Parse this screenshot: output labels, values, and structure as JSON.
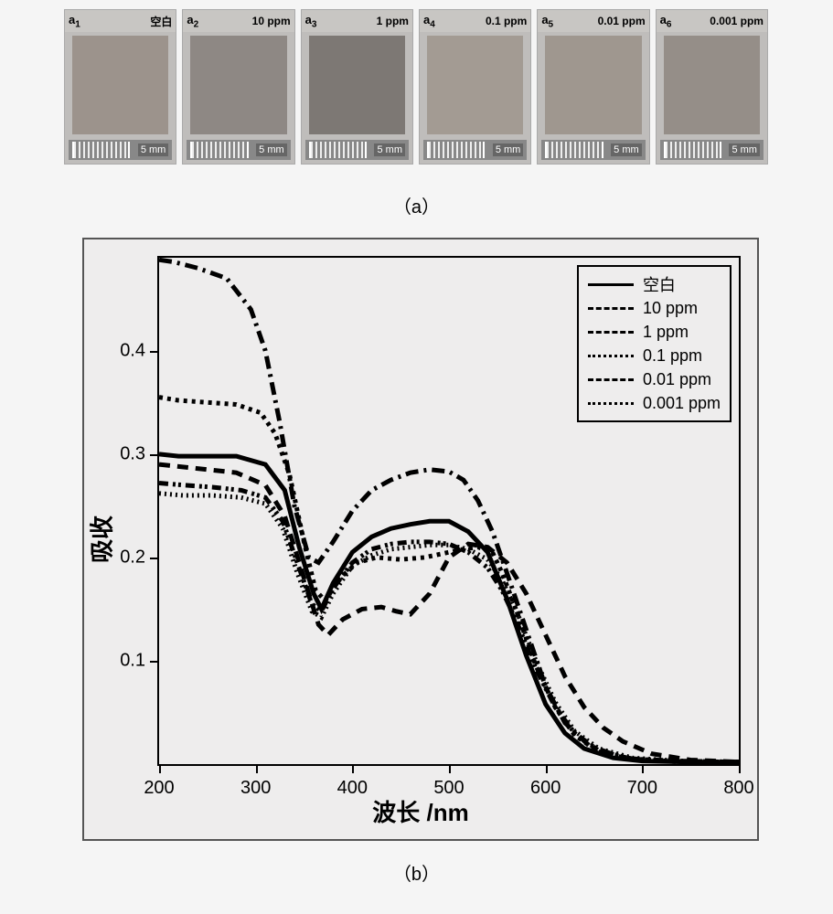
{
  "panel_a": {
    "caption": "（a）",
    "ruler_label": "5 mm",
    "samples": [
      {
        "id_prefix": "a",
        "id_sub": "1",
        "label": "空白",
        "fill": "#9c938c"
      },
      {
        "id_prefix": "a",
        "id_sub": "2",
        "label": "10 ppm",
        "fill": "#8e8884"
      },
      {
        "id_prefix": "a",
        "id_sub": "3",
        "label": "1 ppm",
        "fill": "#7d7874"
      },
      {
        "id_prefix": "a",
        "id_sub": "4",
        "label": "0.1 ppm",
        "fill": "#a39b93"
      },
      {
        "id_prefix": "a",
        "id_sub": "5",
        "label": "0.01 ppm",
        "fill": "#9f978f"
      },
      {
        "id_prefix": "a",
        "id_sub": "6",
        "label": "0.001 ppm",
        "fill": "#958e88"
      }
    ]
  },
  "panel_b": {
    "caption": "（b）",
    "x_axis": {
      "title": "波长 /nm",
      "min": 200,
      "max": 800,
      "ticks": [
        200,
        300,
        400,
        500,
        600,
        700,
        800
      ],
      "fontsize": 20
    },
    "y_axis": {
      "title": "吸收",
      "min": 0.0,
      "max": 0.49,
      "ticks": [
        0.1,
        0.2,
        0.3,
        0.4
      ],
      "fontsize": 20
    },
    "background_color": "#eeeded",
    "line_color": "#000000",
    "line_width": 2.5,
    "series": [
      {
        "name": "空白",
        "dash": "none",
        "points": [
          [
            200,
            0.3
          ],
          [
            220,
            0.298
          ],
          [
            250,
            0.298
          ],
          [
            280,
            0.298
          ],
          [
            310,
            0.29
          ],
          [
            330,
            0.265
          ],
          [
            345,
            0.21
          ],
          [
            360,
            0.165
          ],
          [
            368,
            0.15
          ],
          [
            380,
            0.175
          ],
          [
            400,
            0.205
          ],
          [
            420,
            0.22
          ],
          [
            440,
            0.228
          ],
          [
            460,
            0.232
          ],
          [
            480,
            0.235
          ],
          [
            500,
            0.235
          ],
          [
            520,
            0.225
          ],
          [
            540,
            0.205
          ],
          [
            560,
            0.16
          ],
          [
            580,
            0.105
          ],
          [
            600,
            0.058
          ],
          [
            620,
            0.03
          ],
          [
            640,
            0.015
          ],
          [
            670,
            0.006
          ],
          [
            700,
            0.003
          ],
          [
            750,
            0.002
          ],
          [
            800,
            0.002
          ]
        ]
      },
      {
        "name": "10 ppm",
        "dash": "12,8",
        "points": [
          [
            200,
            0.29
          ],
          [
            220,
            0.288
          ],
          [
            250,
            0.285
          ],
          [
            280,
            0.282
          ],
          [
            310,
            0.27
          ],
          [
            330,
            0.24
          ],
          [
            350,
            0.18
          ],
          [
            365,
            0.135
          ],
          [
            375,
            0.125
          ],
          [
            390,
            0.14
          ],
          [
            410,
            0.15
          ],
          [
            430,
            0.152
          ],
          [
            445,
            0.148
          ],
          [
            460,
            0.145
          ],
          [
            480,
            0.165
          ],
          [
            500,
            0.2
          ],
          [
            520,
            0.213
          ],
          [
            540,
            0.21
          ],
          [
            560,
            0.195
          ],
          [
            580,
            0.165
          ],
          [
            600,
            0.125
          ],
          [
            620,
            0.085
          ],
          [
            640,
            0.055
          ],
          [
            660,
            0.035
          ],
          [
            680,
            0.022
          ],
          [
            710,
            0.01
          ],
          [
            750,
            0.004
          ],
          [
            800,
            0.002
          ]
        ]
      },
      {
        "name": "1 ppm",
        "dash": "14,6,3,6",
        "points": [
          [
            200,
            0.488
          ],
          [
            215,
            0.486
          ],
          [
            240,
            0.48
          ],
          [
            270,
            0.47
          ],
          [
            295,
            0.44
          ],
          [
            310,
            0.4
          ],
          [
            325,
            0.33
          ],
          [
            340,
            0.25
          ],
          [
            355,
            0.2
          ],
          [
            365,
            0.195
          ],
          [
            380,
            0.215
          ],
          [
            400,
            0.245
          ],
          [
            420,
            0.265
          ],
          [
            440,
            0.275
          ],
          [
            460,
            0.282
          ],
          [
            480,
            0.285
          ],
          [
            500,
            0.283
          ],
          [
            515,
            0.275
          ],
          [
            530,
            0.255
          ],
          [
            545,
            0.225
          ],
          [
            560,
            0.185
          ],
          [
            580,
            0.13
          ],
          [
            600,
            0.075
          ],
          [
            620,
            0.04
          ],
          [
            645,
            0.018
          ],
          [
            680,
            0.006
          ],
          [
            720,
            0.003
          ],
          [
            800,
            0.002
          ]
        ]
      },
      {
        "name": "0.1 ppm",
        "dash": "4,5",
        "points": [
          [
            200,
            0.355
          ],
          [
            220,
            0.352
          ],
          [
            250,
            0.35
          ],
          [
            280,
            0.348
          ],
          [
            305,
            0.34
          ],
          [
            320,
            0.32
          ],
          [
            335,
            0.28
          ],
          [
            350,
            0.215
          ],
          [
            362,
            0.168
          ],
          [
            372,
            0.158
          ],
          [
            385,
            0.178
          ],
          [
            405,
            0.195
          ],
          [
            425,
            0.2
          ],
          [
            450,
            0.198
          ],
          [
            475,
            0.2
          ],
          [
            500,
            0.205
          ],
          [
            515,
            0.208
          ],
          [
            530,
            0.21
          ],
          [
            545,
            0.205
          ],
          [
            555,
            0.185
          ],
          [
            570,
            0.148
          ],
          [
            590,
            0.095
          ],
          [
            610,
            0.055
          ],
          [
            630,
            0.028
          ],
          [
            655,
            0.012
          ],
          [
            690,
            0.005
          ],
          [
            740,
            0.002
          ],
          [
            800,
            0.002
          ]
        ]
      },
      {
        "name": "0.01 ppm",
        "dash": "10,5,3,3,3,5",
        "points": [
          [
            200,
            0.272
          ],
          [
            225,
            0.27
          ],
          [
            255,
            0.268
          ],
          [
            285,
            0.265
          ],
          [
            310,
            0.258
          ],
          [
            328,
            0.235
          ],
          [
            343,
            0.195
          ],
          [
            358,
            0.155
          ],
          [
            368,
            0.148
          ],
          [
            380,
            0.17
          ],
          [
            400,
            0.195
          ],
          [
            420,
            0.208
          ],
          [
            440,
            0.213
          ],
          [
            460,
            0.215
          ],
          [
            480,
            0.215
          ],
          [
            500,
            0.213
          ],
          [
            520,
            0.205
          ],
          [
            540,
            0.19
          ],
          [
            555,
            0.168
          ],
          [
            570,
            0.138
          ],
          [
            590,
            0.092
          ],
          [
            610,
            0.055
          ],
          [
            630,
            0.03
          ],
          [
            655,
            0.013
          ],
          [
            690,
            0.005
          ],
          [
            740,
            0.003
          ],
          [
            800,
            0.002
          ]
        ]
      },
      {
        "name": "0.001 ppm",
        "dash": "2,4",
        "points": [
          [
            200,
            0.262
          ],
          [
            225,
            0.26
          ],
          [
            255,
            0.26
          ],
          [
            285,
            0.258
          ],
          [
            310,
            0.252
          ],
          [
            328,
            0.228
          ],
          [
            343,
            0.185
          ],
          [
            358,
            0.148
          ],
          [
            368,
            0.142
          ],
          [
            380,
            0.165
          ],
          [
            400,
            0.192
          ],
          [
            420,
            0.202
          ],
          [
            440,
            0.208
          ],
          [
            460,
            0.21
          ],
          [
            480,
            0.212
          ],
          [
            500,
            0.212
          ],
          [
            520,
            0.208
          ],
          [
            540,
            0.198
          ],
          [
            555,
            0.178
          ],
          [
            570,
            0.148
          ],
          [
            590,
            0.1
          ],
          [
            610,
            0.06
          ],
          [
            630,
            0.032
          ],
          [
            655,
            0.015
          ],
          [
            690,
            0.006
          ],
          [
            740,
            0.003
          ],
          [
            800,
            0.002
          ]
        ]
      }
    ],
    "legend": {
      "border_color": "#000000",
      "fontsize": 18
    }
  }
}
